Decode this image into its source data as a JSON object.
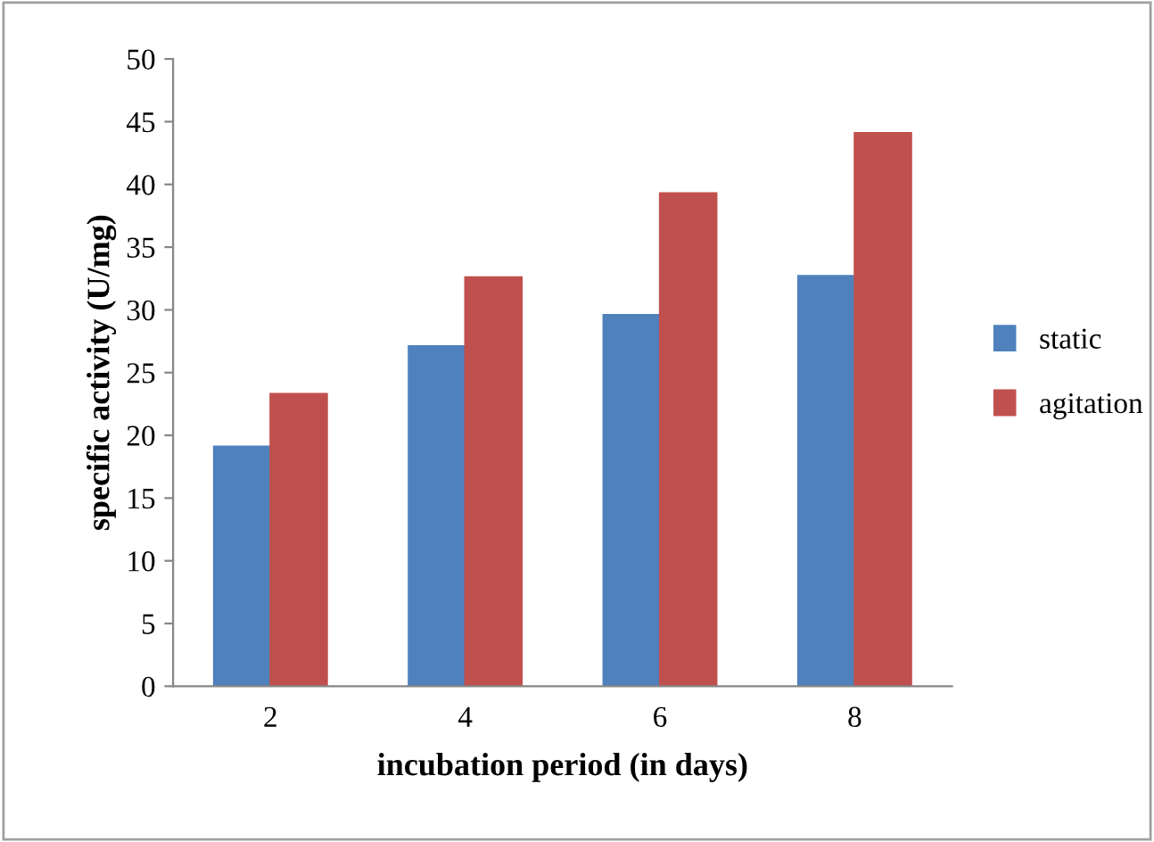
{
  "chart_data": {
    "type": "bar",
    "xlabel": "incubation period (in days)",
    "ylabel": "specific activity (U/mg)",
    "categories": [
      "2",
      "4",
      "6",
      "8"
    ],
    "series": [
      {
        "name": "static",
        "color": "#4f81bd",
        "values": [
          19.1,
          27.1,
          29.6,
          32.7
        ]
      },
      {
        "name": "agitation",
        "color": "#c0504d",
        "values": [
          23.3,
          32.6,
          39.3,
          44.1
        ]
      }
    ],
    "ylim": [
      0,
      50
    ],
    "yticks": [
      0,
      5,
      10,
      15,
      20,
      25,
      30,
      35,
      40,
      45,
      50
    ],
    "grid": false,
    "legend": "right"
  }
}
